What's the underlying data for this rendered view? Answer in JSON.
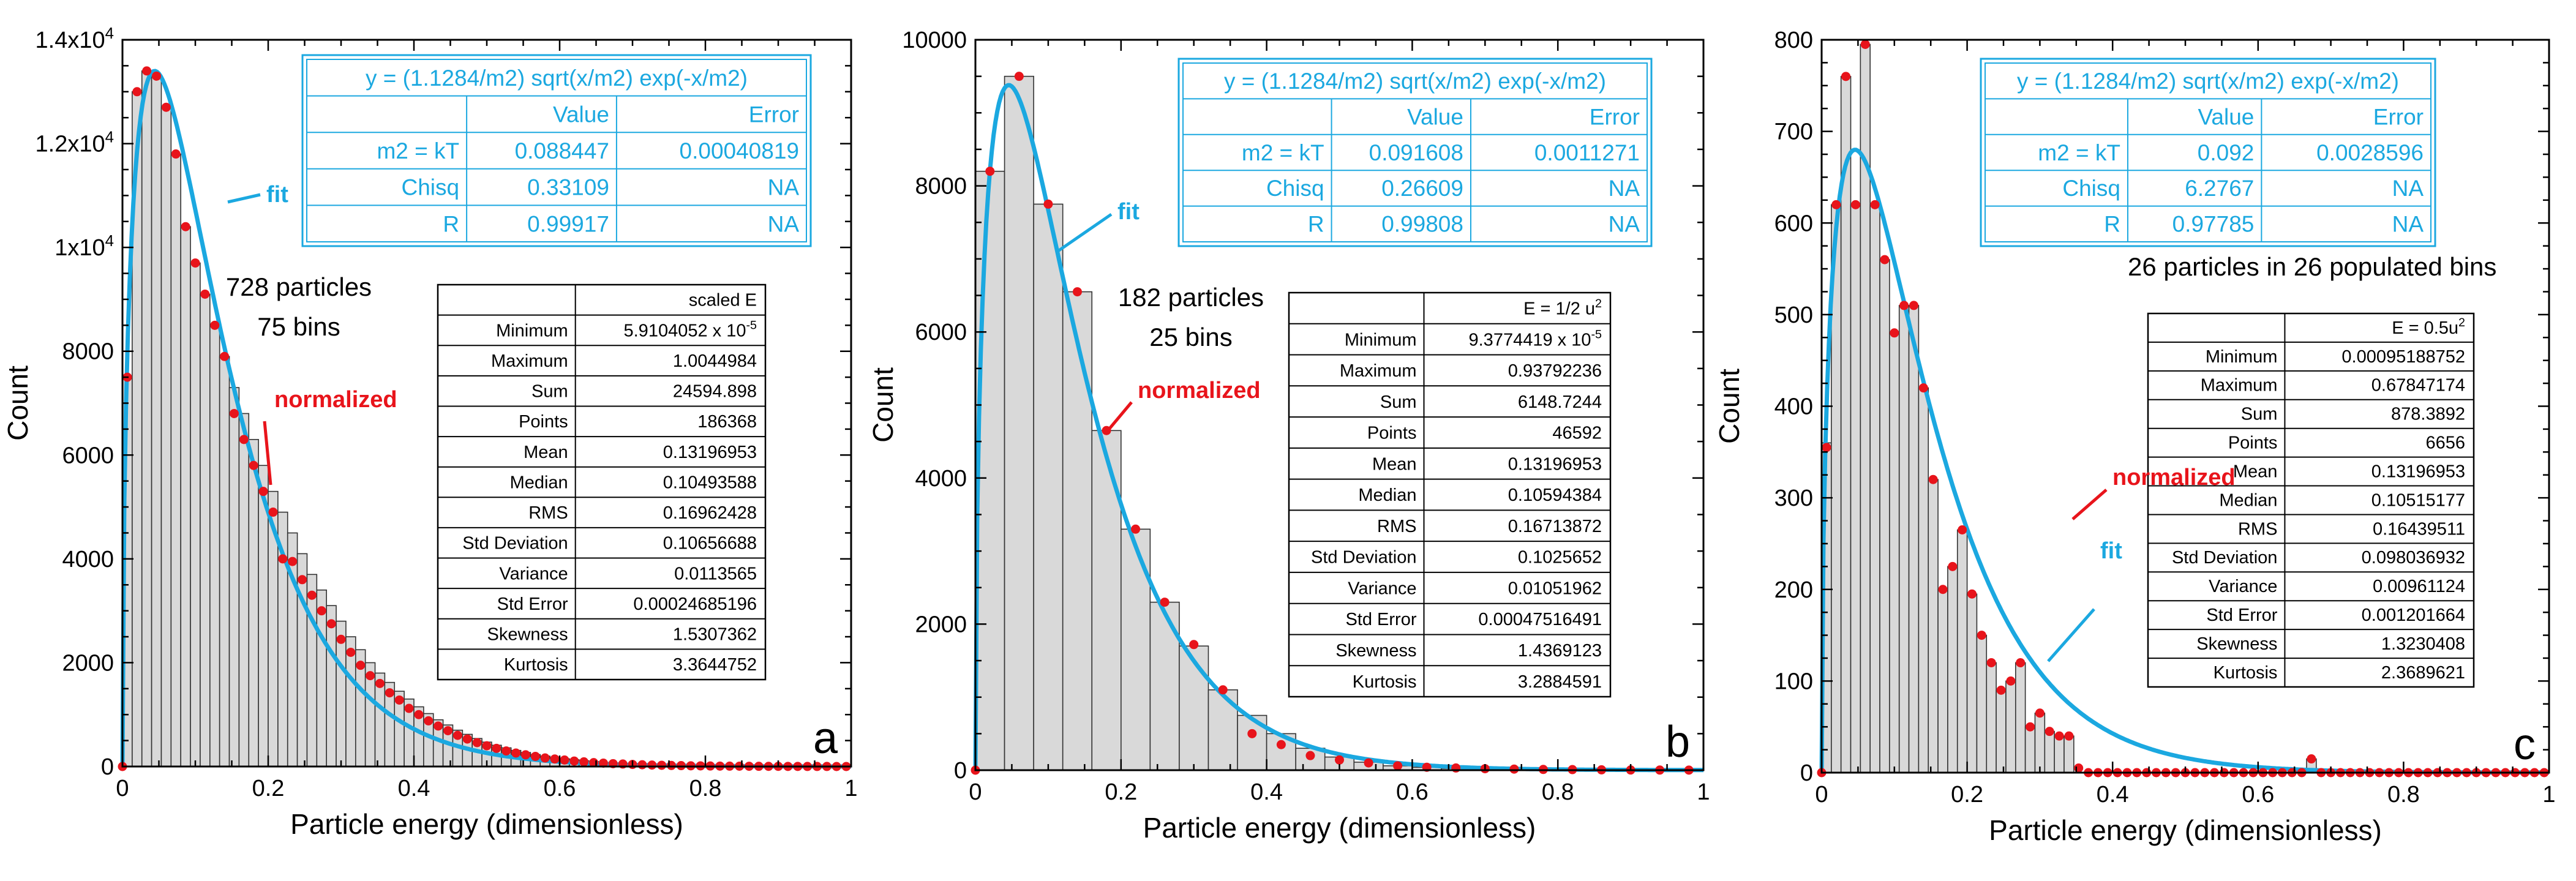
{
  "figure": {
    "x_axis_title": "Particle energy (dimensionless)",
    "y_axis_title": "Count"
  },
  "fit_table_labels": {
    "col_value": "Value",
    "col_error": "Error",
    "rows": [
      "m2 = kT",
      "Chisq",
      "R"
    ]
  },
  "stat_row_labels": [
    "Minimum",
    "Maximum",
    "Sum",
    "Points",
    "Mean",
    "Median",
    "RMS",
    "Std Deviation",
    "Variance",
    "Std Error",
    "Skewness",
    "Kurtosis"
  ],
  "colors": {
    "bar_fill": "#d9d9d9",
    "fit": "#1ba8e0",
    "points": "#e8141b"
  },
  "chart_data": [
    {
      "type": "bar",
      "panel": "a",
      "title": "",
      "xlabel": "Particle energy (dimensionless)",
      "ylabel": "Count",
      "xlim": [
        0,
        1
      ],
      "ylim": [
        0,
        14000
      ],
      "x_ticks": [
        0,
        0.2,
        0.4,
        0.6,
        0.8,
        1
      ],
      "x_tick_labels": [
        "0",
        "0.2",
        "0.4",
        "0.6",
        "0.8",
        "1"
      ],
      "y_ticks": [
        0,
        2000,
        4000,
        6000,
        8000,
        10000,
        12000,
        14000
      ],
      "y_tick_labels": [
        {
          "base": "0"
        },
        {
          "base": "2000"
        },
        {
          "base": "4000"
        },
        {
          "base": "6000"
        },
        {
          "base": "8000"
        },
        {
          "base": "1x10",
          "exp": "4"
        },
        {
          "base": "1.2x10",
          "exp": "4"
        },
        {
          "base": "1.4x10",
          "exp": "4"
        }
      ],
      "bins": 75,
      "bin_width": 0.013333,
      "bar_values": [
        7500,
        13000,
        13400,
        13300,
        12700,
        11800,
        10400,
        9700,
        9100,
        8500,
        7900,
        7300,
        6800,
        6300,
        5800,
        5300,
        4900,
        4500,
        4100,
        3700,
        3400,
        3100,
        2800,
        2500,
        2250,
        2000,
        1800,
        1620,
        1450,
        1300,
        1150,
        1020,
        900,
        800,
        700,
        620,
        540,
        470,
        410,
        360,
        310,
        270,
        230,
        200,
        170,
        150,
        130,
        110,
        95,
        80,
        68,
        58,
        50,
        42,
        36,
        30,
        26,
        22,
        18,
        15,
        13,
        11,
        9,
        8,
        6,
        5,
        4,
        3,
        3,
        2,
        2,
        1,
        1,
        1,
        0
      ],
      "normalized_points": [
        [
          0,
          0
        ],
        [
          0.0067,
          7500
        ],
        [
          0.02,
          13000
        ],
        [
          0.0333,
          13400
        ],
        [
          0.0467,
          13300
        ],
        [
          0.06,
          12700
        ],
        [
          0.0733,
          11800
        ],
        [
          0.0867,
          10400
        ],
        [
          0.1,
          9700
        ],
        [
          0.1133,
          9100
        ],
        [
          0.1267,
          8500
        ],
        [
          0.14,
          7900
        ],
        [
          0.1533,
          6800
        ],
        [
          0.1667,
          6300
        ],
        [
          0.18,
          5800
        ],
        [
          0.1933,
          5300
        ],
        [
          0.2067,
          4900
        ],
        [
          0.22,
          4000
        ],
        [
          0.2333,
          3950
        ],
        [
          0.2467,
          3600
        ],
        [
          0.26,
          3300
        ],
        [
          0.2733,
          3000
        ],
        [
          0.2867,
          2750
        ],
        [
          0.3,
          2450
        ],
        [
          0.3133,
          2200
        ],
        [
          0.3267,
          1950
        ],
        [
          0.34,
          1750
        ],
        [
          0.3533,
          1600
        ],
        [
          0.3667,
          1420
        ],
        [
          0.38,
          1280
        ],
        [
          0.3933,
          1120
        ],
        [
          0.4067,
          1000
        ],
        [
          0.42,
          880
        ],
        [
          0.4333,
          780
        ],
        [
          0.4467,
          690
        ],
        [
          0.46,
          600
        ],
        [
          0.4733,
          530
        ],
        [
          0.4867,
          460
        ],
        [
          0.5,
          400
        ],
        [
          0.5133,
          350
        ],
        [
          0.5267,
          300
        ],
        [
          0.54,
          260
        ],
        [
          0.5533,
          225
        ],
        [
          0.5667,
          195
        ],
        [
          0.58,
          165
        ],
        [
          0.5933,
          145
        ],
        [
          0.6067,
          125
        ],
        [
          0.62,
          105
        ],
        [
          0.6333,
          90
        ],
        [
          0.6467,
          75
        ],
        [
          0.66,
          65
        ],
        [
          0.6733,
          55
        ],
        [
          0.6867,
          48
        ],
        [
          0.7,
          40
        ],
        [
          0.7133,
          34
        ],
        [
          0.7267,
          28
        ],
        [
          0.74,
          24
        ],
        [
          0.7533,
          20
        ],
        [
          0.7667,
          17
        ],
        [
          0.78,
          14
        ],
        [
          0.7933,
          12
        ],
        [
          0.8067,
          10
        ],
        [
          0.82,
          8
        ],
        [
          0.8333,
          7
        ],
        [
          0.8467,
          6
        ],
        [
          0.86,
          5
        ],
        [
          0.8733,
          4
        ],
        [
          0.8867,
          3
        ],
        [
          0.9,
          3
        ],
        [
          0.9133,
          2
        ],
        [
          0.9267,
          2
        ],
        [
          0.94,
          1
        ],
        [
          0.9533,
          1
        ],
        [
          0.9667,
          1
        ],
        [
          0.98,
          0
        ],
        [
          0.9933,
          0
        ]
      ],
      "fit": {
        "model": "y = (1.1284/m2) sqrt(x/m2) exp(-x/m2)",
        "amplitude": 13400
      },
      "fit_table": {
        "equation": "y = (1.1284/m2) sqrt(x/m2) exp(-x/m2)",
        "rows": [
          [
            "m2 = kT",
            "0.088447",
            "0.00040819"
          ],
          [
            "Chisq",
            "0.33109",
            "NA"
          ],
          [
            "R",
            "0.99917",
            "NA"
          ]
        ]
      },
      "stats": {
        "header": "scaled E",
        "values": [
          {
            "base": "5.9104052 x 10",
            "exp": "-5"
          },
          {
            "base": "1.0044984"
          },
          {
            "base": "24594.898"
          },
          {
            "base": "186368"
          },
          {
            "base": "0.13196953"
          },
          {
            "base": "0.10493588"
          },
          {
            "base": "0.16962428"
          },
          {
            "base": "0.10656688"
          },
          {
            "base": "0.0113565"
          },
          {
            "base": "0.00024685196"
          },
          {
            "base": "1.5307362"
          },
          {
            "base": "3.3644752"
          }
        ]
      },
      "annotations": {
        "particles": "728 particles",
        "bins_text": "75 bins",
        "fit_label": "fit",
        "normalized_label": "normalized",
        "panel_letter": "a"
      }
    },
    {
      "type": "bar",
      "panel": "b",
      "title": "",
      "xlabel": "Particle energy (dimensionless)",
      "ylabel": "Count",
      "xlim": [
        0,
        1
      ],
      "ylim": [
        0,
        10000
      ],
      "x_ticks": [
        0,
        0.2,
        0.4,
        0.6,
        0.8,
        1
      ],
      "x_tick_labels": [
        "0",
        "0.2",
        "0.4",
        "0.6",
        "0.8",
        "1"
      ],
      "y_ticks": [
        0,
        2000,
        4000,
        6000,
        8000,
        10000
      ],
      "y_tick_labels": [
        {
          "base": "0"
        },
        {
          "base": "2000"
        },
        {
          "base": "4000"
        },
        {
          "base": "6000"
        },
        {
          "base": "8000"
        },
        {
          "base": "10000"
        }
      ],
      "bins": 25,
      "bin_width": 0.04,
      "bar_values": [
        8200,
        9500,
        7750,
        6550,
        4650,
        3300,
        2300,
        1700,
        1100,
        750,
        500,
        300,
        180,
        110,
        60,
        40,
        25,
        15,
        8,
        5,
        3,
        2,
        1,
        1,
        0
      ],
      "normalized_points": [
        [
          0,
          0
        ],
        [
          0.02,
          8200
        ],
        [
          0.06,
          9500
        ],
        [
          0.1,
          7750
        ],
        [
          0.14,
          6550
        ],
        [
          0.18,
          4650
        ],
        [
          0.22,
          3300
        ],
        [
          0.26,
          2300
        ],
        [
          0.3,
          1720
        ],
        [
          0.34,
          1100
        ],
        [
          0.38,
          500
        ],
        [
          0.42,
          350
        ],
        [
          0.46,
          200
        ],
        [
          0.5,
          140
        ],
        [
          0.54,
          100
        ],
        [
          0.58,
          60
        ],
        [
          0.62,
          40
        ],
        [
          0.66,
          30
        ],
        [
          0.7,
          20
        ],
        [
          0.74,
          15
        ],
        [
          0.78,
          10
        ],
        [
          0.82,
          8
        ],
        [
          0.86,
          5
        ],
        [
          0.9,
          3
        ],
        [
          0.94,
          2
        ],
        [
          0.98,
          1
        ]
      ],
      "fit": {
        "model": "y = (1.1284/m2) sqrt(x/m2) exp(-x/m2)",
        "amplitude": 9380
      },
      "fit_table": {
        "equation": "y = (1.1284/m2) sqrt(x/m2) exp(-x/m2)",
        "rows": [
          [
            "m2 = kT",
            "0.091608",
            "0.0011271"
          ],
          [
            "Chisq",
            "0.26609",
            "NA"
          ],
          [
            "R",
            "0.99808",
            "NA"
          ]
        ]
      },
      "stats": {
        "header": {
          "base": "E = 1/2 u",
          "exp": "2"
        },
        "values": [
          {
            "base": "9.3774419 x 10",
            "exp": "-5"
          },
          {
            "base": "0.93792236"
          },
          {
            "base": "6148.7244"
          },
          {
            "base": "46592"
          },
          {
            "base": "0.13196953"
          },
          {
            "base": "0.10594384"
          },
          {
            "base": "0.16713872"
          },
          {
            "base": "0.1025652"
          },
          {
            "base": "0.01051962"
          },
          {
            "base": "0.00047516491"
          },
          {
            "base": "1.4369123"
          },
          {
            "base": "3.2884591"
          }
        ]
      },
      "annotations": {
        "particles": "182 particles",
        "bins_text": "25 bins",
        "fit_label": "fit",
        "normalized_label": "normalized",
        "panel_letter": "b"
      }
    },
    {
      "type": "bar",
      "panel": "c",
      "title": "",
      "xlabel": "Particle energy (dimensionless)",
      "ylabel": "Count",
      "xlim": [
        0,
        1
      ],
      "ylim": [
        0,
        800
      ],
      "x_ticks": [
        0,
        0.2,
        0.4,
        0.6,
        0.8,
        1
      ],
      "x_tick_labels": [
        "0",
        "0.2",
        "0.4",
        "0.6",
        "0.8",
        "1"
      ],
      "y_ticks": [
        0,
        100,
        200,
        300,
        400,
        500,
        600,
        700,
        800
      ],
      "y_tick_labels": [
        {
          "base": "0"
        },
        {
          "base": "100"
        },
        {
          "base": "200"
        },
        {
          "base": "300"
        },
        {
          "base": "400"
        },
        {
          "base": "500"
        },
        {
          "base": "600"
        },
        {
          "base": "700"
        },
        {
          "base": "800"
        }
      ],
      "bins": 75,
      "bin_width": 0.013333,
      "bar_values": [
        360,
        620,
        760,
        620,
        795,
        620,
        560,
        480,
        510,
        510,
        420,
        320,
        200,
        225,
        265,
        195,
        150,
        120,
        90,
        100,
        120,
        50,
        65,
        45,
        40,
        40,
        0,
        0,
        0,
        0,
        0,
        0,
        0,
        0,
        0,
        0,
        0,
        0,
        0,
        0,
        0,
        0,
        0,
        0,
        0,
        0,
        0,
        0,
        0,
        0,
        15,
        0,
        0,
        0,
        0,
        0,
        0,
        0,
        0,
        0,
        0,
        0,
        0,
        0,
        0,
        0,
        0,
        0,
        0,
        0,
        0,
        0,
        0,
        0,
        0
      ],
      "normalized_points": [
        [
          0,
          0
        ],
        [
          0.0067,
          355
        ],
        [
          0.02,
          620
        ],
        [
          0.0333,
          760
        ],
        [
          0.0467,
          620
        ],
        [
          0.06,
          795
        ],
        [
          0.0733,
          620
        ],
        [
          0.0867,
          560
        ],
        [
          0.1,
          480
        ],
        [
          0.1133,
          510
        ],
        [
          0.1267,
          510
        ],
        [
          0.14,
          420
        ],
        [
          0.1533,
          320
        ],
        [
          0.1667,
          200
        ],
        [
          0.18,
          225
        ],
        [
          0.1933,
          265
        ],
        [
          0.2067,
          195
        ],
        [
          0.22,
          150
        ],
        [
          0.2333,
          120
        ],
        [
          0.2467,
          90
        ],
        [
          0.26,
          100
        ],
        [
          0.2733,
          120
        ],
        [
          0.2867,
          50
        ],
        [
          0.3,
          65
        ],
        [
          0.3133,
          45
        ],
        [
          0.3267,
          40
        ],
        [
          0.34,
          40
        ],
        [
          0.3533,
          5
        ],
        [
          0.3667,
          0
        ],
        [
          0.38,
          0
        ],
        [
          0.3933,
          0
        ],
        [
          0.4067,
          0
        ],
        [
          0.42,
          0
        ],
        [
          0.4333,
          0
        ],
        [
          0.4467,
          0
        ],
        [
          0.46,
          0
        ],
        [
          0.4733,
          0
        ],
        [
          0.4867,
          0
        ],
        [
          0.5,
          0
        ],
        [
          0.5133,
          0
        ],
        [
          0.5267,
          0
        ],
        [
          0.54,
          0
        ],
        [
          0.5533,
          0
        ],
        [
          0.5667,
          0
        ],
        [
          0.58,
          0
        ],
        [
          0.5933,
          0
        ],
        [
          0.6067,
          0
        ],
        [
          0.62,
          0
        ],
        [
          0.6333,
          0
        ],
        [
          0.6467,
          0
        ],
        [
          0.66,
          0
        ],
        [
          0.6733,
          15
        ],
        [
          0.6867,
          0
        ],
        [
          0.7,
          0
        ],
        [
          0.7133,
          0
        ],
        [
          0.7267,
          0
        ],
        [
          0.74,
          0
        ],
        [
          0.7533,
          0
        ],
        [
          0.7667,
          0
        ],
        [
          0.78,
          0
        ],
        [
          0.7933,
          0
        ],
        [
          0.8067,
          0
        ],
        [
          0.82,
          0
        ],
        [
          0.8333,
          0
        ],
        [
          0.8467,
          0
        ],
        [
          0.86,
          0
        ],
        [
          0.8733,
          0
        ],
        [
          0.8867,
          0
        ],
        [
          0.9,
          0
        ],
        [
          0.9133,
          0
        ],
        [
          0.9267,
          0
        ],
        [
          0.94,
          0
        ],
        [
          0.9533,
          0
        ],
        [
          0.9667,
          0
        ],
        [
          0.98,
          0
        ],
        [
          0.9933,
          0
        ]
      ],
      "fit": {
        "model": "y = (1.1284/m2) sqrt(x/m2) exp(-x/m2)",
        "amplitude": 680
      },
      "fit_table": {
        "equation": "y = (1.1284/m2) sqrt(x/m2) exp(-x/m2)",
        "rows": [
          [
            "m2 = kT",
            "0.092",
            "0.0028596"
          ],
          [
            "Chisq",
            "6.2767",
            "NA"
          ],
          [
            "R",
            "0.97785",
            "NA"
          ]
        ]
      },
      "stats": {
        "header": {
          "base": "E = 0.5u",
          "exp": "2"
        },
        "values": [
          {
            "base": "0.00095188752"
          },
          {
            "base": "0.67847174"
          },
          {
            "base": "878.3892"
          },
          {
            "base": "6656"
          },
          {
            "base": "0.13196953"
          },
          {
            "base": "0.10515177"
          },
          {
            "base": "0.16439511"
          },
          {
            "base": "0.098036932"
          },
          {
            "base": "0.00961124"
          },
          {
            "base": "0.001201664"
          },
          {
            "base": "1.3230408"
          },
          {
            "base": "2.3689621"
          }
        ]
      },
      "annotations": {
        "particles": "26 particles in 26 populated bins",
        "bins_text": "",
        "fit_label": "fit",
        "normalized_label": "normalized",
        "panel_letter": "c"
      }
    }
  ]
}
